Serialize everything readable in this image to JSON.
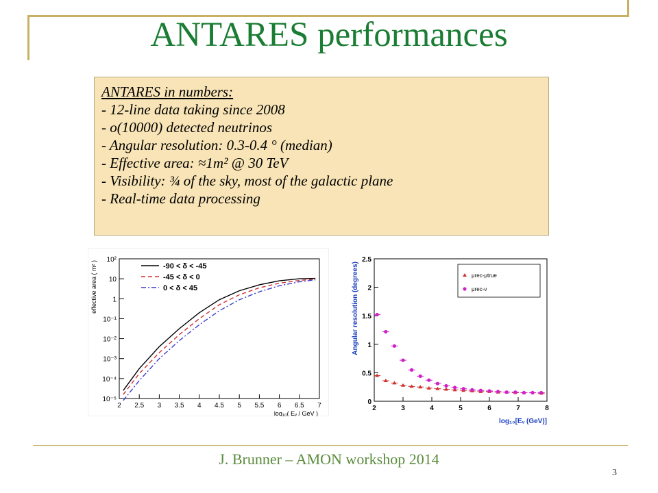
{
  "slide": {
    "title": "ANTARES performances",
    "footer": "J. Brunner – AMON workshop 2014",
    "page_number": "3",
    "colors": {
      "title": "#1a7d33",
      "frame": "#c9b062",
      "box_bg": "#f8e4b6",
      "footer": "#5a8b3c"
    }
  },
  "info_box": {
    "heading": "ANTARES in numbers:",
    "items": [
      "- 12-line data taking since 2008",
      "- o(10000) detected neutrinos",
      "- Angular resolution: 0.3-0.4 ° (median)",
      "- Effective area: ≈1m² @ 30 TeV",
      "- Visibility: ¾ of the sky, most of the galactic plane",
      "- Real-time data processing"
    ]
  },
  "chart_data": [
    {
      "type": "line",
      "xlabel": "log₁₀( Eᵥ / GeV )",
      "ylabel": "effective area ( m² )",
      "xlim": [
        2,
        7
      ],
      "ylim_log10": [
        -5,
        2
      ],
      "log_y": true,
      "x_ticks": [
        "2",
        "2.5",
        "3",
        "3.5",
        "4",
        "4.5",
        "5",
        "5.5",
        "6",
        "6.5",
        "7"
      ],
      "y_ticks": [
        "10⁻⁵",
        "10⁻⁴",
        "10⁻³",
        "10⁻²",
        "10⁻¹",
        "1",
        "10",
        "10²"
      ],
      "legend_position": "top-left",
      "x": [
        2.1,
        2.5,
        3.0,
        3.5,
        4.0,
        4.5,
        5.0,
        5.5,
        6.0,
        6.5,
        6.9
      ],
      "series": [
        {
          "name": "-90 < δ < -45",
          "color": "#000000",
          "dash": "solid",
          "log10_values": [
            -4.6,
            -3.5,
            -2.4,
            -1.5,
            -0.7,
            -0.05,
            0.4,
            0.7,
            0.9,
            1.0,
            1.02
          ]
        },
        {
          "name": "-45 < δ < 0",
          "color": "#d03030",
          "dash": "dashed",
          "log10_values": [
            -4.8,
            -3.75,
            -2.7,
            -1.8,
            -1.0,
            -0.3,
            0.2,
            0.55,
            0.78,
            0.92,
            0.98
          ]
        },
        {
          "name": "0 < δ < 45",
          "color": "#3a3ad0",
          "dash": "dashdot",
          "log10_values": [
            -5.1,
            -4.1,
            -3.0,
            -2.1,
            -1.3,
            -0.6,
            -0.05,
            0.35,
            0.65,
            0.85,
            0.95
          ]
        }
      ]
    },
    {
      "type": "scatter",
      "xlabel": "log₁₀[Eᵥ (GeV)]",
      "ylabel": "Angular resolution (degrees)",
      "xlim": [
        2,
        8
      ],
      "ylim": [
        0,
        2.5
      ],
      "x_ticks": [
        "2",
        "3",
        "4",
        "5",
        "6",
        "7",
        "8"
      ],
      "y_ticks": [
        "0",
        "0.5",
        "1",
        "1.5",
        "2",
        "2.5"
      ],
      "legend_position": "top-right",
      "x": [
        2.1,
        2.4,
        2.7,
        3.0,
        3.3,
        3.6,
        3.9,
        4.2,
        4.5,
        4.8,
        5.1,
        5.4,
        5.7,
        6.0,
        6.3,
        6.6,
        6.9,
        7.2,
        7.5,
        7.8
      ],
      "series": [
        {
          "name": "μrec-μtrue",
          "color": "#d03030",
          "marker": "triangle",
          "values": [
            0.45,
            0.36,
            0.32,
            0.28,
            0.26,
            0.25,
            0.23,
            0.22,
            0.21,
            0.2,
            0.19,
            0.18,
            0.17,
            0.17,
            0.16,
            0.16,
            0.15,
            0.15,
            0.15,
            0.14
          ]
        },
        {
          "name": "μrec-ν",
          "color": "#d020c8",
          "marker": "circle",
          "values": [
            1.52,
            1.22,
            0.97,
            0.72,
            0.55,
            0.44,
            0.37,
            0.31,
            0.27,
            0.24,
            0.22,
            0.2,
            0.19,
            0.18,
            0.17,
            0.16,
            0.16,
            0.15,
            0.15,
            0.15
          ]
        }
      ]
    }
  ]
}
